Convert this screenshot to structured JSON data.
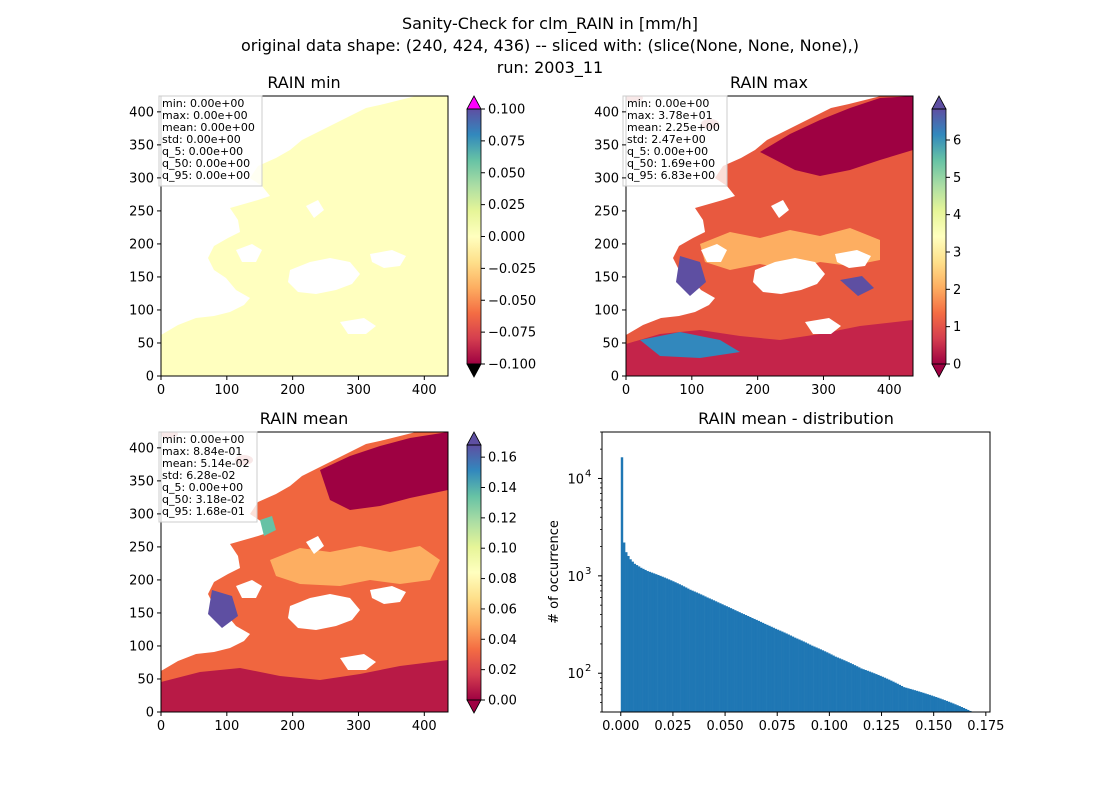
{
  "figure": {
    "title_lines": [
      "Sanity-Check for clm_RAIN in [mm/h]",
      "original data shape: (240, 424, 436) -- sliced with: (slice(None, None, None),)",
      "run: 2003_11"
    ]
  },
  "colors": {
    "colormap": "Spectral",
    "land_zero": "#ffffbf",
    "hist_bar": "#1f77b4",
    "over_min_panel": "#ff00ff",
    "under": "#000000"
  },
  "chart_data": [
    {
      "type": "heatmap",
      "title": "RAIN min",
      "x_ticks": [
        "0",
        "100",
        "200",
        "300",
        "400"
      ],
      "y_ticks": [
        "0",
        "50",
        "100",
        "150",
        "200",
        "250",
        "300",
        "350",
        "400"
      ],
      "xlim": [
        0,
        436
      ],
      "ylim": [
        0,
        424
      ],
      "colorbar": {
        "range": [
          -0.1,
          0.1
        ],
        "ticks": [
          "0.100",
          "0.075",
          "0.050",
          "0.025",
          "0.000",
          "−0.025",
          "−0.050",
          "−0.075",
          "−0.100"
        ],
        "extend": "both"
      },
      "stats": [
        "min: 0.00e+00",
        "max: 0.00e+00",
        "mean: 0.00e+00",
        "std: 0.00e+00",
        "q_5: 0.00e+00",
        "q_50: 0.00e+00",
        "q_95: 0.00e+00"
      ]
    },
    {
      "type": "heatmap",
      "title": "RAIN max",
      "x_ticks": [
        "0",
        "100",
        "200",
        "300",
        "400"
      ],
      "y_ticks": [
        "0",
        "50",
        "100",
        "150",
        "200",
        "250",
        "300",
        "350",
        "400"
      ],
      "xlim": [
        0,
        436
      ],
      "ylim": [
        0,
        424
      ],
      "colorbar": {
        "range": [
          0,
          6.83
        ],
        "ticks": [
          "6",
          "5",
          "4",
          "3",
          "2",
          "1",
          "0"
        ],
        "extend": "both"
      },
      "stats": [
        "min: 0.00e+00",
        "max: 3.78e+01",
        "mean: 2.25e+00",
        "std: 2.47e+00",
        "q_5: 0.00e+00",
        "q_50: 1.69e+00",
        "q_95: 6.83e+00"
      ]
    },
    {
      "type": "heatmap",
      "title": "RAIN mean",
      "x_ticks": [
        "0",
        "100",
        "200",
        "300",
        "400"
      ],
      "y_ticks": [
        "0",
        "50",
        "100",
        "150",
        "200",
        "250",
        "300",
        "350",
        "400"
      ],
      "xlim": [
        0,
        436
      ],
      "ylim": [
        0,
        424
      ],
      "colorbar": {
        "range": [
          0,
          0.168
        ],
        "ticks": [
          "0.16",
          "0.14",
          "0.12",
          "0.10",
          "0.08",
          "0.06",
          "0.04",
          "0.02",
          "0.00"
        ],
        "extend": "both"
      },
      "stats": [
        "min: 0.00e+00",
        "max: 8.84e-01",
        "mean: 5.14e-02",
        "std: 6.28e-02",
        "q_5: 0.00e+00",
        "q_50: 3.18e-02",
        "q_95: 1.68e-01"
      ]
    },
    {
      "type": "bar",
      "title": "RAIN mean - distribution",
      "ylabel": "# of occurrence",
      "yscale": "log",
      "ylim": [
        40,
        30000
      ],
      "xlim": [
        -0.009,
        0.177
      ],
      "x_ticks": [
        "0.000",
        "0.025",
        "0.050",
        "0.075",
        "0.100",
        "0.125",
        "0.150",
        "0.175"
      ],
      "x_tick_values": [
        0,
        0.025,
        0.05,
        0.075,
        0.1,
        0.125,
        0.15,
        0.175
      ],
      "y_ticks": [
        "10",
        "10",
        "10"
      ],
      "y_tick_exponents": [
        "2",
        "3",
        "4"
      ],
      "y_tick_values": [
        100,
        1000,
        10000
      ],
      "bin_range": [
        0,
        0.168
      ],
      "counts": [
        16500,
        2200,
        1750,
        1600,
        1480,
        1400,
        1330,
        1290,
        1250,
        1210,
        1180,
        1150,
        1120,
        1100,
        1080,
        1060,
        1040,
        1020,
        1000,
        980,
        960,
        940,
        920,
        900,
        880,
        860,
        840,
        820,
        800,
        780,
        760,
        740,
        720,
        705,
        690,
        675,
        660,
        645,
        630,
        615,
        600,
        587,
        574,
        561,
        548,
        535,
        523,
        511,
        499,
        488,
        477,
        466,
        455,
        444,
        434,
        424,
        414,
        405,
        396,
        387,
        378,
        369,
        361,
        353,
        345,
        337,
        329,
        321,
        314,
        307,
        300,
        293,
        286,
        280,
        274,
        268,
        262,
        256,
        250,
        244,
        238,
        232,
        227,
        222,
        217,
        212,
        207,
        202,
        197,
        192,
        188,
        184,
        180,
        176,
        172,
        168,
        164,
        160,
        156,
        152,
        148,
        145,
        142,
        139,
        136,
        133,
        130,
        127,
        124,
        121,
        118,
        115,
        112,
        110,
        108,
        106,
        104,
        102,
        100,
        98,
        96,
        94,
        92,
        90,
        88,
        86,
        84,
        82,
        80,
        78,
        76,
        74,
        72,
        71,
        70,
        69,
        68,
        67,
        66,
        65,
        64,
        63,
        62,
        61,
        60,
        59,
        58,
        57,
        56,
        55,
        54,
        53,
        52,
        51,
        50,
        49,
        48,
        47,
        46,
        45,
        44,
        43,
        42,
        41
      ]
    }
  ]
}
